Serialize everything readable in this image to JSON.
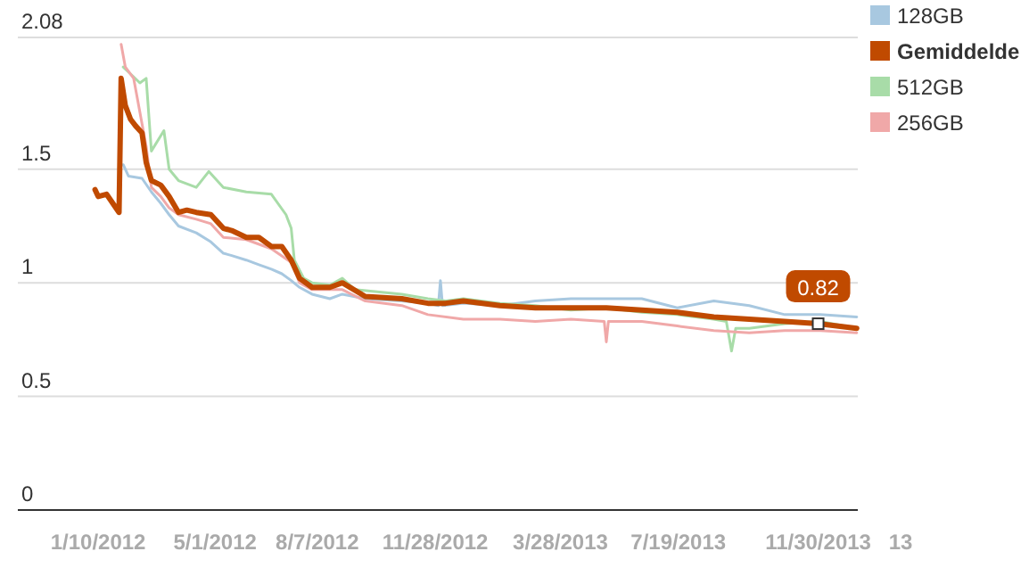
{
  "chart_data": {
    "type": "line",
    "xlim": [
      "2011-10-25",
      "2014-01-07"
    ],
    "ylim": [
      0,
      2.08
    ],
    "yticks": [
      0,
      0.5,
      1,
      1.5,
      2.08
    ],
    "xticks": [
      {
        "value": "2012-01-10",
        "label": "1/10/2012"
      },
      {
        "value": "2012-05-01",
        "label": "5/1/2012"
      },
      {
        "value": "2012-08-07",
        "label": "8/7/2012"
      },
      {
        "value": "2012-11-28",
        "label": "11/28/2012"
      },
      {
        "value": "2013-03-28",
        "label": "3/28/2013"
      },
      {
        "value": "2013-07-19",
        "label": "7/19/2013"
      },
      {
        "value": "2013-11-30",
        "label": "11/30/2013"
      }
    ],
    "grid": "y",
    "legend": "top right",
    "line_style": "solid",
    "marker": "none",
    "annotations": [
      {
        "text": "0.82",
        "x": "2013-11-30",
        "y": 0.82
      },
      "13"
    ],
    "series": [
      {
        "name": "128GB",
        "color": "#a8c8e0",
        "x": [
          "2012-02-03",
          "2012-02-08",
          "2012-02-21",
          "2012-03-01",
          "2012-03-10",
          "2012-03-18",
          "2012-03-27",
          "2012-04-13",
          "2012-04-27",
          "2012-05-09",
          "2012-05-17",
          "2012-05-31",
          "2012-06-12",
          "2012-06-24",
          "2012-07-04",
          "2012-07-13",
          "2012-07-21",
          "2012-08-02",
          "2012-08-19",
          "2012-08-31",
          "2012-09-22",
          "2012-10-27",
          "2012-11-21",
          "2012-12-01",
          "2012-12-03",
          "2012-12-05",
          "2012-12-25",
          "2013-01-29",
          "2013-03-04",
          "2013-04-07",
          "2013-05-11",
          "2013-06-14",
          "2013-07-18",
          "2013-08-22",
          "2013-09-25",
          "2013-10-29",
          "2013-12-02",
          "2014-01-06"
        ],
        "values": [
          1.52,
          1.47,
          1.46,
          1.4,
          1.35,
          1.3,
          1.25,
          1.22,
          1.18,
          1.13,
          1.12,
          1.1,
          1.08,
          1.06,
          1.04,
          1.01,
          0.98,
          0.95,
          0.93,
          0.95,
          0.93,
          0.92,
          0.91,
          0.9,
          1.01,
          0.9,
          0.91,
          0.9,
          0.92,
          0.93,
          0.93,
          0.93,
          0.89,
          0.92,
          0.9,
          0.86,
          0.86,
          0.85
        ]
      },
      {
        "name": "Gemiddelde",
        "color": "#c04a00",
        "x": [
          "2012-01-07",
          "2012-01-10",
          "2012-01-18",
          "2012-01-30",
          "2012-02-01",
          "2012-02-05",
          "2012-02-10",
          "2012-02-15",
          "2012-02-21",
          "2012-02-25",
          "2012-03-01",
          "2012-03-10",
          "2012-03-18",
          "2012-03-27",
          "2012-04-04",
          "2012-04-13",
          "2012-04-27",
          "2012-05-09",
          "2012-05-17",
          "2012-05-31",
          "2012-06-12",
          "2012-06-24",
          "2012-07-04",
          "2012-07-13",
          "2012-07-21",
          "2012-08-02",
          "2012-08-19",
          "2012-08-31",
          "2012-09-22",
          "2012-10-27",
          "2012-11-21",
          "2012-12-08",
          "2012-12-25",
          "2013-01-29",
          "2013-03-04",
          "2013-04-07",
          "2013-05-11",
          "2013-06-14",
          "2013-07-18",
          "2013-08-22",
          "2013-09-25",
          "2013-10-29",
          "2013-11-30",
          "2014-01-06"
        ],
        "values": [
          1.41,
          1.38,
          1.39,
          1.31,
          1.9,
          1.78,
          1.72,
          1.69,
          1.66,
          1.53,
          1.45,
          1.43,
          1.38,
          1.31,
          1.32,
          1.31,
          1.3,
          1.24,
          1.23,
          1.2,
          1.2,
          1.16,
          1.16,
          1.1,
          1.02,
          0.98,
          0.98,
          1.0,
          0.94,
          0.93,
          0.91,
          0.91,
          0.92,
          0.9,
          0.89,
          0.89,
          0.89,
          0.88,
          0.87,
          0.85,
          0.84,
          0.83,
          0.82,
          0.8
        ]
      },
      {
        "name": "512GB",
        "color": "#a8dca8",
        "x": [
          "2012-02-03",
          "2012-02-19",
          "2012-02-25",
          "2012-03-01",
          "2012-03-13",
          "2012-03-18",
          "2012-03-27",
          "2012-04-13",
          "2012-04-25",
          "2012-05-09",
          "2012-05-31",
          "2012-06-24",
          "2012-07-08",
          "2012-07-13",
          "2012-07-16",
          "2012-07-25",
          "2012-08-02",
          "2012-08-19",
          "2012-08-31",
          "2012-09-12",
          "2012-10-27",
          "2012-11-21",
          "2012-12-08",
          "2012-12-25",
          "2013-01-29",
          "2013-03-04",
          "2013-04-07",
          "2013-05-11",
          "2013-06-14",
          "2013-07-18",
          "2013-08-22",
          "2013-09-03",
          "2013-09-08",
          "2013-09-12",
          "2013-09-25",
          "2013-10-29",
          "2013-12-02",
          "2014-01-06"
        ],
        "values": [
          1.95,
          1.88,
          1.9,
          1.58,
          1.67,
          1.5,
          1.45,
          1.42,
          1.49,
          1.42,
          1.4,
          1.39,
          1.3,
          1.24,
          1.1,
          1.02,
          1.0,
          0.99,
          1.02,
          0.97,
          0.95,
          0.93,
          0.92,
          0.93,
          0.91,
          0.9,
          0.88,
          0.89,
          0.87,
          0.86,
          0.84,
          0.83,
          0.7,
          0.8,
          0.8,
          0.82,
          0.83,
          0.8
        ]
      },
      {
        "name": "256GB",
        "color": "#f0a8a8",
        "x": [
          "2012-02-01",
          "2012-02-05",
          "2012-02-13",
          "2012-02-21",
          "2012-02-25",
          "2012-03-01",
          "2012-03-10",
          "2012-03-18",
          "2012-03-27",
          "2012-04-13",
          "2012-04-27",
          "2012-05-09",
          "2012-05-31",
          "2012-06-24",
          "2012-07-13",
          "2012-07-21",
          "2012-08-02",
          "2012-08-19",
          "2012-08-31",
          "2012-09-22",
          "2012-10-27",
          "2012-11-21",
          "2012-12-25",
          "2013-01-29",
          "2013-03-04",
          "2013-04-07",
          "2013-05-09",
          "2013-05-11",
          "2013-05-13",
          "2013-06-14",
          "2013-07-18",
          "2013-08-22",
          "2013-09-25",
          "2013-10-29",
          "2013-12-02",
          "2014-01-06"
        ],
        "values": [
          2.05,
          1.95,
          1.9,
          1.7,
          1.6,
          1.42,
          1.38,
          1.33,
          1.3,
          1.28,
          1.26,
          1.2,
          1.19,
          1.15,
          1.09,
          1.0,
          0.97,
          0.97,
          0.97,
          0.92,
          0.9,
          0.86,
          0.84,
          0.84,
          0.83,
          0.84,
          0.83,
          0.74,
          0.83,
          0.83,
          0.81,
          0.79,
          0.78,
          0.79,
          0.79,
          0.78
        ]
      }
    ]
  }
}
